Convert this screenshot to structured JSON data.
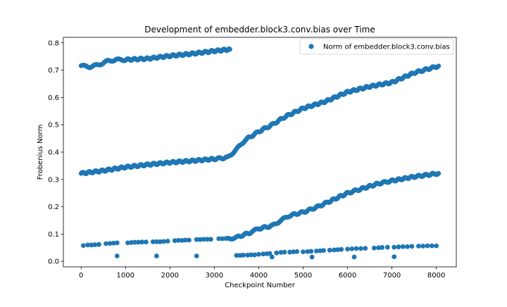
{
  "chart_data": {
    "type": "scatter",
    "title": "Development of embedder.block3.conv.bias over Time",
    "xlabel": "Checkpoint Number",
    "ylabel": "Frobenius Norm",
    "xlim": [
      -400,
      8450
    ],
    "ylim": [
      -0.02,
      0.82
    ],
    "xticks": [
      0,
      1000,
      2000,
      3000,
      4000,
      5000,
      6000,
      7000,
      8000
    ],
    "yticks": [
      0.0,
      0.1,
      0.2,
      0.3,
      0.4,
      0.5,
      0.6,
      0.7,
      0.8
    ],
    "tick_labels_x": [
      "0",
      "1000",
      "2000",
      "3000",
      "4000",
      "5000",
      "6000",
      "7000",
      "8000"
    ],
    "tick_labels_y": [
      "0.0",
      "0.1",
      "0.2",
      "0.3",
      "0.4",
      "0.5",
      "0.6",
      "0.7",
      "0.8"
    ],
    "grid": false,
    "legend_position": "top-right",
    "series": [
      {
        "name": "Norm of embedder.block3.conv.bias",
        "color": "#1f77b4",
        "marker": "circle",
        "segments": [
          {
            "x": [
              0,
              200,
              400,
              600,
              800,
              1000,
              1500,
              2000,
              2500,
              3000,
              3350
            ],
            "y": [
              0.716,
              0.712,
              0.72,
              0.733,
              0.738,
              0.738,
              0.742,
              0.752,
              0.76,
              0.77,
              0.776
            ]
          },
          {
            "x": [
              0,
              500,
              1000,
              1500,
              2000,
              2500,
              3000,
              3300,
              3500,
              3700,
              4000,
              4300,
              4600,
              5000,
              5500,
              6000,
              6500,
              7000,
              7500,
              8050
            ],
            "y": [
              0.322,
              0.332,
              0.345,
              0.354,
              0.362,
              0.368,
              0.375,
              0.38,
              0.41,
              0.445,
              0.475,
              0.5,
              0.53,
              0.56,
              0.585,
              0.62,
              0.64,
              0.655,
              0.69,
              0.715
            ]
          },
          {
            "x": [
              3300,
              3500,
              3800,
              4000,
              4300,
              4500,
              4700,
              5000,
              5300,
              5600,
              6000,
              6300,
              6700,
              7000,
              7500,
              8050
            ],
            "y": [
              0.082,
              0.088,
              0.105,
              0.12,
              0.13,
              0.15,
              0.168,
              0.18,
              0.198,
              0.22,
              0.25,
              0.265,
              0.285,
              0.295,
              0.31,
              0.322
            ]
          }
        ],
        "sparse_points": {
          "x": [
            50,
            150,
            230,
            310,
            400,
            560,
            650,
            730,
            810,
            1050,
            1130,
            1210,
            1290,
            1370,
            1460,
            1620,
            1700,
            1780,
            1860,
            1950,
            2110,
            2190,
            2270,
            2350,
            2430,
            2600,
            2680,
            2760,
            2840,
            2920,
            3100,
            3180,
            3260,
            3500,
            3580,
            3650,
            3750,
            3830,
            3910,
            4000,
            4100,
            4180,
            4250,
            4400,
            4500,
            4580,
            4700,
            4780,
            4860,
            5000,
            5100,
            5180,
            5300,
            5380,
            5460,
            5600,
            5700,
            5780,
            5860,
            6000,
            6100,
            6200,
            6300,
            6400,
            6600,
            6700,
            6780,
            6900,
            7050,
            7150,
            7250,
            7350,
            7450,
            7600,
            7700,
            7800,
            7900,
            8000,
            810,
            1700,
            2600,
            4300,
            5200,
            6150,
            7050
          ],
          "y": [
            0.058,
            0.06,
            0.06,
            0.061,
            0.062,
            0.065,
            0.066,
            0.067,
            0.068,
            0.068,
            0.069,
            0.07,
            0.07,
            0.071,
            0.071,
            0.072,
            0.072,
            0.072,
            0.073,
            0.074,
            0.076,
            0.077,
            0.077,
            0.078,
            0.078,
            0.08,
            0.08,
            0.081,
            0.081,
            0.081,
            0.083,
            0.083,
            0.084,
            0.022,
            0.022,
            0.023,
            0.023,
            0.024,
            0.024,
            0.026,
            0.027,
            0.028,
            0.029,
            0.031,
            0.033,
            0.034,
            0.034,
            0.035,
            0.036,
            0.035,
            0.036,
            0.037,
            0.038,
            0.039,
            0.04,
            0.041,
            0.042,
            0.043,
            0.044,
            0.045,
            0.046,
            0.047,
            0.047,
            0.048,
            0.049,
            0.05,
            0.051,
            0.052,
            0.052,
            0.053,
            0.054,
            0.054,
            0.055,
            0.056,
            0.056,
            0.057,
            0.057,
            0.057,
            0.02,
            0.02,
            0.02,
            0.016,
            0.016,
            0.016,
            0.017
          ]
        }
      }
    ]
  }
}
